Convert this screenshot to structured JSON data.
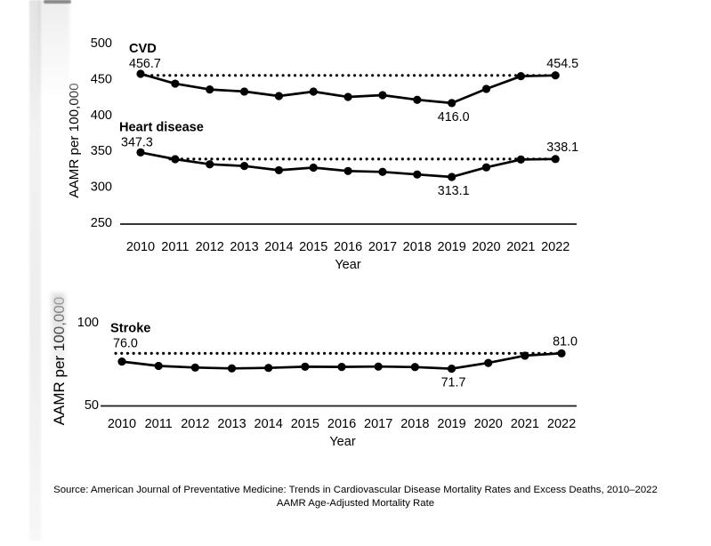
{
  "figure": {
    "source_line": "Source: American Journal of Preventative Medicine: Trends in Cardiovascular Disease Mortality Rates and Excess Deaths, 2010–2022",
    "abbreviation_line": "AAMR Age-Adjusted Mortality Rate"
  },
  "colors": {
    "line": "#000000",
    "text": "#000000",
    "axis": "#1a1a1a",
    "label_fade_gray": "#a8a8a8"
  },
  "chart_data": [
    {
      "type": "line",
      "panel": "top",
      "x": [
        2010,
        2011,
        2012,
        2013,
        2014,
        2015,
        2016,
        2017,
        2018,
        2019,
        2020,
        2021,
        2022
      ],
      "xlabel": "Year",
      "ylabel": "AAMR per 100,000",
      "ylim": [
        250,
        500
      ],
      "yticks": [
        500,
        450,
        400,
        350,
        300,
        250
      ],
      "grid": false,
      "legend_position": "inline-labels",
      "series": [
        {
          "name": "CVD",
          "values": [
            456.7,
            443.0,
            434.9,
            432.0,
            425.7,
            431.9,
            424.5,
            427.0,
            420.5,
            416.0,
            435.7,
            453.4,
            454.5
          ],
          "label_start": "456.7",
          "label_min": "416.0",
          "label_end": "454.5",
          "min_index": 9,
          "reference_line_value": 454.5,
          "reference_line_style": "dotted"
        },
        {
          "name": "Heart disease",
          "values": [
            347.3,
            337.9,
            330.8,
            328.4,
            322.5,
            326.1,
            321.4,
            320.2,
            316.6,
            313.1,
            326.5,
            337.4,
            338.1
          ],
          "label_start": "347.3",
          "label_min": "313.1",
          "label_end": "338.1",
          "min_index": 9,
          "reference_line_value": 338.1,
          "reference_line_style": "dotted"
        }
      ]
    },
    {
      "type": "line",
      "panel": "bottom",
      "x": [
        2010,
        2011,
        2012,
        2013,
        2014,
        2015,
        2016,
        2017,
        2018,
        2019,
        2020,
        2021,
        2022
      ],
      "xlabel": "Year",
      "ylabel": "AAMR per 100,000",
      "ylim": [
        50,
        100
      ],
      "yticks": [
        100,
        50
      ],
      "grid": false,
      "legend_position": "inline-labels",
      "series": [
        {
          "name": "Stroke",
          "values": [
            76.0,
            73.4,
            72.4,
            71.9,
            72.2,
            72.9,
            72.8,
            73.0,
            72.7,
            71.7,
            75.2,
            79.6,
            81.0
          ],
          "label_start": "76.0",
          "label_min": "71.7",
          "label_end": "81.0",
          "min_index": 9,
          "reference_line_value": 81.0,
          "reference_line_style": "dotted"
        }
      ]
    }
  ]
}
